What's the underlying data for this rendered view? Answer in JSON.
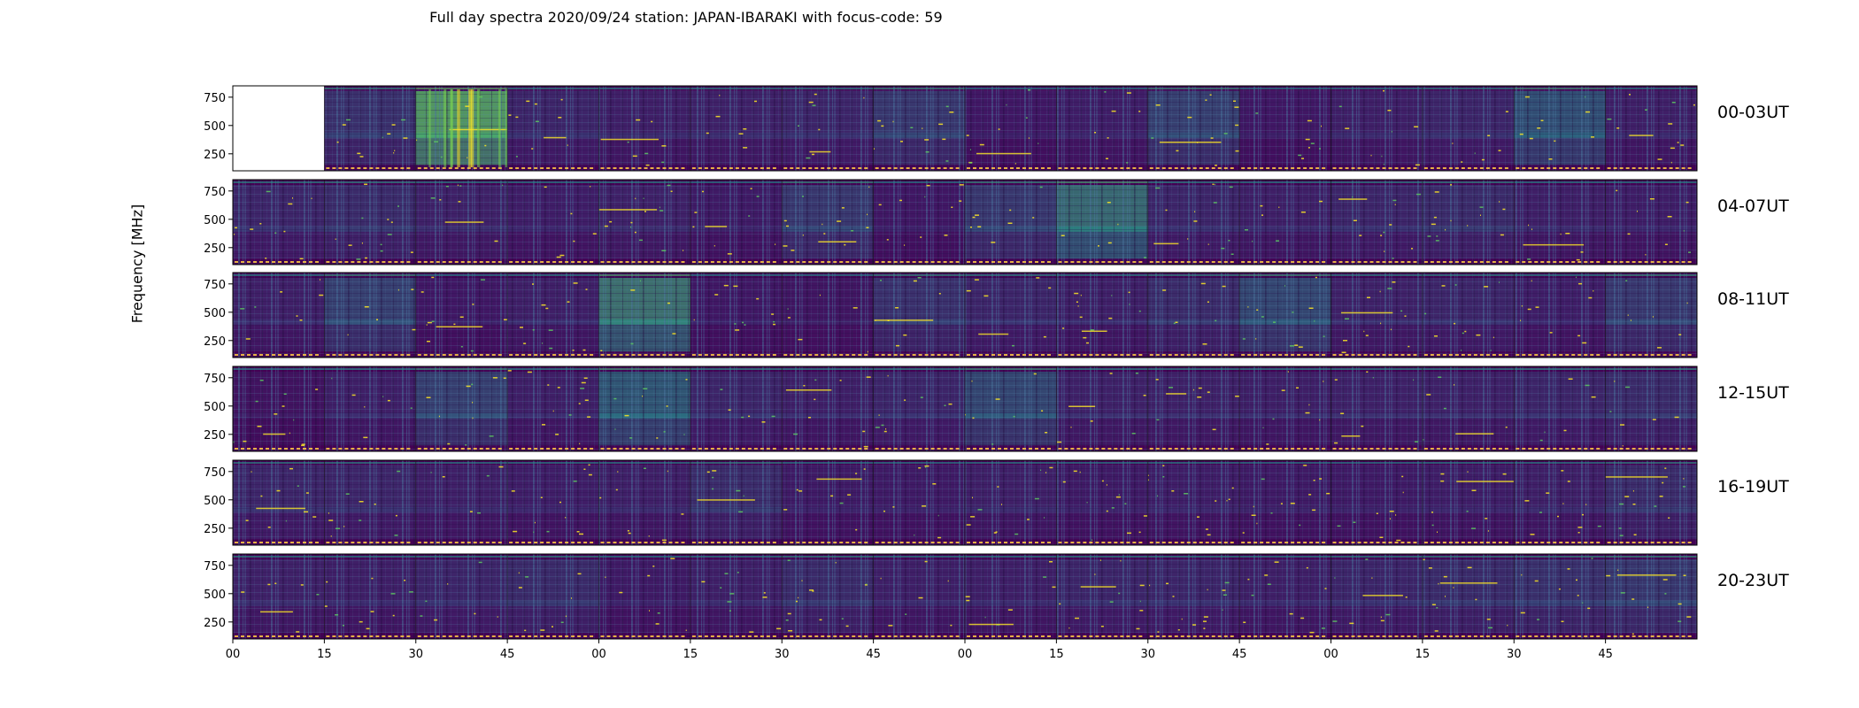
{
  "chart_data": {
    "type": "heatmap",
    "title": "Full day spectra 2020/09/24 station: JAPAN-IBARAKI with focus-code: 59",
    "ylabel": "Frequency [MHz]",
    "xlabel": "",
    "row_labels": [
      "00-03UT",
      "04-07UT",
      "08-11UT",
      "12-15UT",
      "16-19UT",
      "20-23UT"
    ],
    "x_tick_labels": [
      "00",
      "15",
      "30",
      "45",
      "00",
      "15",
      "30",
      "45",
      "00",
      "15",
      "30",
      "45",
      "00",
      "15",
      "30",
      "45"
    ],
    "y_ticks": [
      750,
      500,
      250
    ],
    "ylim": [
      100,
      850
    ],
    "segments_per_row": 16,
    "segment_minutes": 15,
    "colormap": "viridis",
    "missing_segments": [
      [
        0,
        0
      ]
    ],
    "segment_intensity": [
      [
        0.0,
        0.35,
        0.95,
        0.25,
        0.2,
        0.22,
        0.25,
        0.4,
        0.12,
        0.18,
        0.45,
        0.12,
        0.2,
        0.25,
        0.55,
        0.2
      ],
      [
        0.25,
        0.3,
        0.22,
        0.18,
        0.22,
        0.15,
        0.4,
        0.12,
        0.4,
        0.7,
        0.25,
        0.2,
        0.25,
        0.3,
        0.2,
        0.18
      ],
      [
        0.2,
        0.45,
        0.12,
        0.2,
        0.75,
        0.12,
        0.1,
        0.35,
        0.25,
        0.2,
        0.3,
        0.5,
        0.22,
        0.25,
        0.18,
        0.4
      ],
      [
        0.08,
        0.2,
        0.45,
        0.2,
        0.6,
        0.25,
        0.2,
        0.25,
        0.5,
        0.22,
        0.22,
        0.2,
        0.22,
        0.22,
        0.25,
        0.3
      ],
      [
        0.25,
        0.25,
        0.2,
        0.18,
        0.2,
        0.3,
        0.15,
        0.15,
        0.2,
        0.15,
        0.18,
        0.15,
        0.15,
        0.18,
        0.2,
        0.3
      ],
      [
        0.22,
        0.2,
        0.25,
        0.3,
        0.15,
        0.2,
        0.3,
        0.2,
        0.2,
        0.25,
        0.25,
        0.2,
        0.25,
        0.3,
        0.35,
        0.4
      ]
    ],
    "colors": {
      "background": "#440154",
      "low": "#3b2a6e",
      "mid": "#31688e",
      "high": "#35b779",
      "peak": "#fde725"
    }
  }
}
